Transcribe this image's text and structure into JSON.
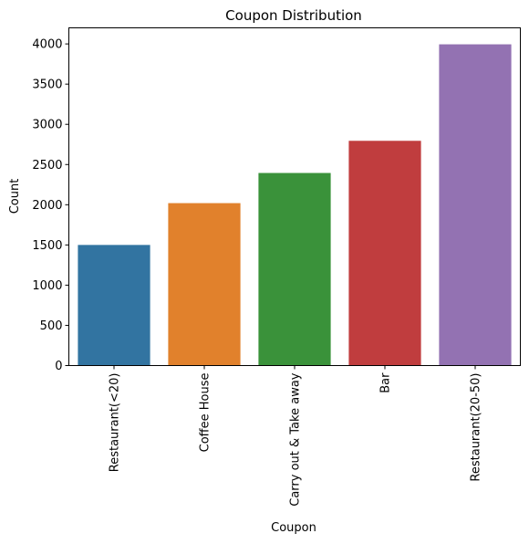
{
  "chart_data": {
    "type": "bar",
    "title": "Coupon Distribution",
    "xlabel": "Coupon",
    "ylabel": "Count",
    "categories": [
      "Restaurant(<20)",
      "Coffee House",
      "Carry out & Take away",
      "Bar",
      "Restaurant(20-50)"
    ],
    "values": [
      1500,
      2020,
      2395,
      2795,
      3995
    ],
    "colors": [
      "#3274a1",
      "#e1812c",
      "#3a923a",
      "#c03d3e",
      "#9372b2"
    ],
    "ylim": [
      0,
      4200
    ],
    "yticks": [
      0,
      500,
      1000,
      1500,
      2000,
      2500,
      3000,
      3500,
      4000
    ],
    "grid": false,
    "legend": "none"
  }
}
